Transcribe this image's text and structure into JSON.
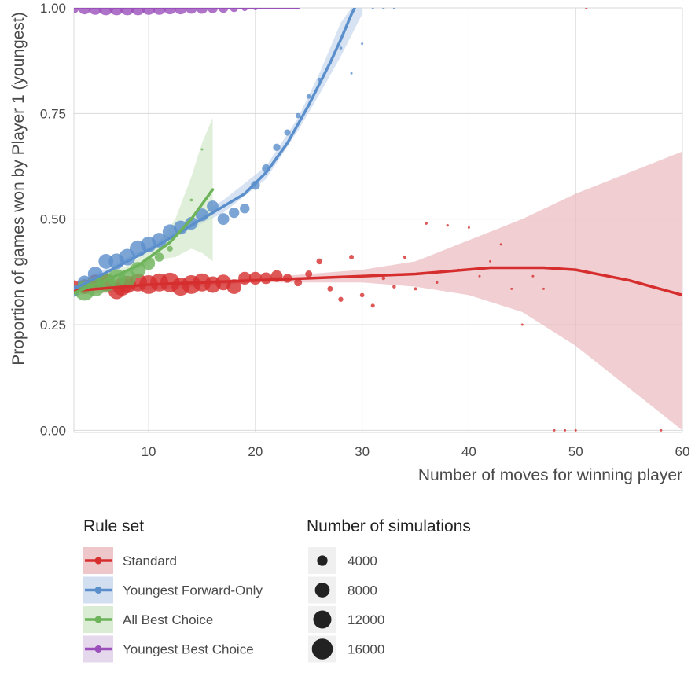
{
  "chart_data": {
    "type": "scatter",
    "title": "",
    "xlabel": "Number of moves for winning player",
    "ylabel": "Proportion of games won by Player 1 (youngest)",
    "xlim": [
      3,
      60
    ],
    "ylim": [
      -0.005,
      1.0
    ],
    "x_ticks": [
      10,
      20,
      30,
      40,
      50,
      60
    ],
    "y_ticks": [
      0.0,
      0.25,
      0.5,
      0.75,
      1.0
    ],
    "x_tick_labels": [
      "10",
      "20",
      "30",
      "40",
      "50",
      "60"
    ],
    "y_tick_labels": [
      "0.00",
      "0.25",
      "0.50",
      "0.75",
      "1.00"
    ],
    "grid": true,
    "legend_color_title": "Rule set",
    "legend_size_title": "Number of simulations",
    "size_legend": [
      {
        "label": "4000",
        "value": 4000
      },
      {
        "label": "8000",
        "value": 8000
      },
      {
        "label": "12000",
        "value": 12000
      },
      {
        "label": "16000",
        "value": 16000
      }
    ],
    "series": [
      {
        "name": "Standard",
        "color": "#d62e2e",
        "band_color": "#e8b4b8",
        "points": [
          {
            "x": 3,
            "y": 0.34,
            "n": 6000
          },
          {
            "x": 4,
            "y": 0.34,
            "n": 8000
          },
          {
            "x": 5,
            "y": 0.35,
            "n": 9000
          },
          {
            "x": 6,
            "y": 0.35,
            "n": 11000
          },
          {
            "x": 7,
            "y": 0.33,
            "n": 10000
          },
          {
            "x": 7.5,
            "y": 0.34,
            "n": 12000
          },
          {
            "x": 8,
            "y": 0.345,
            "n": 11000
          },
          {
            "x": 9,
            "y": 0.35,
            "n": 12000
          },
          {
            "x": 10,
            "y": 0.345,
            "n": 13000
          },
          {
            "x": 11,
            "y": 0.35,
            "n": 12000
          },
          {
            "x": 12,
            "y": 0.35,
            "n": 14000
          },
          {
            "x": 13,
            "y": 0.34,
            "n": 12000
          },
          {
            "x": 14,
            "y": 0.345,
            "n": 13000
          },
          {
            "x": 15,
            "y": 0.35,
            "n": 12000
          },
          {
            "x": 16,
            "y": 0.345,
            "n": 10000
          },
          {
            "x": 17,
            "y": 0.35,
            "n": 9000
          },
          {
            "x": 18,
            "y": 0.34,
            "n": 8000
          },
          {
            "x": 19,
            "y": 0.36,
            "n": 6000
          },
          {
            "x": 20,
            "y": 0.36,
            "n": 6000
          },
          {
            "x": 21,
            "y": 0.36,
            "n": 5000
          },
          {
            "x": 22,
            "y": 0.365,
            "n": 5000
          },
          {
            "x": 23,
            "y": 0.36,
            "n": 3000
          },
          {
            "x": 24,
            "y": 0.35,
            "n": 2200
          },
          {
            "x": 25,
            "y": 0.37,
            "n": 1800
          },
          {
            "x": 26,
            "y": 0.4,
            "n": 1300
          },
          {
            "x": 27,
            "y": 0.335,
            "n": 1100
          },
          {
            "x": 28,
            "y": 0.31,
            "n": 900
          },
          {
            "x": 29,
            "y": 0.41,
            "n": 800
          },
          {
            "x": 30,
            "y": 0.32,
            "n": 700
          },
          {
            "x": 31,
            "y": 0.295,
            "n": 600
          },
          {
            "x": 32,
            "y": 0.36,
            "n": 500
          },
          {
            "x": 33,
            "y": 0.34,
            "n": 450
          },
          {
            "x": 34,
            "y": 0.41,
            "n": 400
          },
          {
            "x": 35,
            "y": 0.335,
            "n": 350
          },
          {
            "x": 36,
            "y": 0.49,
            "n": 300
          },
          {
            "x": 37,
            "y": 0.35,
            "n": 280
          },
          {
            "x": 38,
            "y": 0.485,
            "n": 250
          },
          {
            "x": 39,
            "y": 0.38,
            "n": 220
          },
          {
            "x": 40,
            "y": 0.48,
            "n": 200
          },
          {
            "x": 41,
            "y": 0.365,
            "n": 180
          },
          {
            "x": 42,
            "y": 0.4,
            "n": 160
          },
          {
            "x": 43,
            "y": 0.44,
            "n": 150
          },
          {
            "x": 44,
            "y": 0.335,
            "n": 140
          },
          {
            "x": 45,
            "y": 0.25,
            "n": 120
          },
          {
            "x": 46,
            "y": 0.365,
            "n": 110
          },
          {
            "x": 47,
            "y": 0.335,
            "n": 100
          },
          {
            "x": 48,
            "y": 0.0,
            "n": 100
          },
          {
            "x": 49,
            "y": 0.0,
            "n": 100
          },
          {
            "x": 50,
            "y": 0.0,
            "n": 100
          },
          {
            "x": 51,
            "y": 1.0,
            "n": 100
          },
          {
            "x": 58,
            "y": 0.0,
            "n": 100
          }
        ],
        "fit": [
          [
            3,
            0.33
          ],
          [
            10,
            0.345
          ],
          [
            20,
            0.355
          ],
          [
            30,
            0.365
          ],
          [
            35,
            0.37
          ],
          [
            42,
            0.385
          ],
          [
            47,
            0.385
          ],
          [
            50,
            0.38
          ],
          [
            55,
            0.355
          ],
          [
            60,
            0.32
          ]
        ],
        "band": [
          [
            3,
            0.32,
            0.34
          ],
          [
            20,
            0.35,
            0.36
          ],
          [
            30,
            0.35,
            0.38
          ],
          [
            35,
            0.34,
            0.4
          ],
          [
            40,
            0.32,
            0.45
          ],
          [
            45,
            0.28,
            0.5
          ],
          [
            50,
            0.2,
            0.56
          ],
          [
            55,
            0.1,
            0.61
          ],
          [
            60,
            0.0,
            0.66
          ]
        ]
      },
      {
        "name": "Youngest Forward-Only",
        "color": "#5b8fcc",
        "band_color": "#c2d4ec",
        "points": [
          {
            "x": 3,
            "y": 0.33,
            "n": 5000
          },
          {
            "x": 4,
            "y": 0.35,
            "n": 7000
          },
          {
            "x": 5,
            "y": 0.37,
            "n": 8000
          },
          {
            "x": 6,
            "y": 0.4,
            "n": 8000
          },
          {
            "x": 7,
            "y": 0.4,
            "n": 9000
          },
          {
            "x": 8,
            "y": 0.41,
            "n": 10000
          },
          {
            "x": 9,
            "y": 0.43,
            "n": 10000
          },
          {
            "x": 10,
            "y": 0.44,
            "n": 9000
          },
          {
            "x": 11,
            "y": 0.45,
            "n": 8000
          },
          {
            "x": 12,
            "y": 0.47,
            "n": 8000
          },
          {
            "x": 13,
            "y": 0.48,
            "n": 7000
          },
          {
            "x": 14,
            "y": 0.49,
            "n": 6000
          },
          {
            "x": 15,
            "y": 0.51,
            "n": 6000
          },
          {
            "x": 16,
            "y": 0.53,
            "n": 5000
          },
          {
            "x": 17,
            "y": 0.5,
            "n": 5000
          },
          {
            "x": 18,
            "y": 0.515,
            "n": 4000
          },
          {
            "x": 19,
            "y": 0.525,
            "n": 3500
          },
          {
            "x": 20,
            "y": 0.58,
            "n": 3000
          },
          {
            "x": 21,
            "y": 0.62,
            "n": 2500
          },
          {
            "x": 22,
            "y": 0.67,
            "n": 2000
          },
          {
            "x": 23,
            "y": 0.705,
            "n": 1500
          },
          {
            "x": 24,
            "y": 0.745,
            "n": 1000
          },
          {
            "x": 25,
            "y": 0.79,
            "n": 800
          },
          {
            "x": 26,
            "y": 0.83,
            "n": 600
          },
          {
            "x": 27,
            "y": 0.87,
            "n": 400
          },
          {
            "x": 28,
            "y": 0.905,
            "n": 300
          },
          {
            "x": 29,
            "y": 0.845,
            "n": 200
          },
          {
            "x": 30,
            "y": 0.915,
            "n": 150
          },
          {
            "x": 31,
            "y": 1.0,
            "n": 100
          },
          {
            "x": 32,
            "y": 1.0,
            "n": 100
          },
          {
            "x": 33,
            "y": 1.0,
            "n": 100
          }
        ],
        "fit": [
          [
            3,
            0.335
          ],
          [
            5,
            0.36
          ],
          [
            8,
            0.4
          ],
          [
            11,
            0.44
          ],
          [
            14,
            0.485
          ],
          [
            17,
            0.53
          ],
          [
            19,
            0.56
          ],
          [
            21,
            0.61
          ],
          [
            23,
            0.68
          ],
          [
            25,
            0.77
          ],
          [
            26,
            0.82
          ],
          [
            27,
            0.87
          ],
          [
            28,
            0.925
          ],
          [
            29,
            0.985
          ],
          [
            29.3,
            1.0
          ]
        ],
        "band": [
          [
            3,
            0.325,
            0.345
          ],
          [
            10,
            0.425,
            0.435
          ],
          [
            17,
            0.515,
            0.545
          ],
          [
            21,
            0.595,
            0.625
          ],
          [
            24,
            0.71,
            0.74
          ],
          [
            26,
            0.795,
            0.845
          ],
          [
            28,
            0.885,
            0.965
          ],
          [
            29,
            0.935,
            1.0
          ],
          [
            30,
            0.985,
            1.0
          ]
        ]
      },
      {
        "name": "All Best Choice",
        "color": "#6db35a",
        "band_color": "#cfe6c6",
        "points": [
          {
            "x": 4,
            "y": 0.33,
            "n": 14000
          },
          {
            "x": 5,
            "y": 0.34,
            "n": 14000
          },
          {
            "x": 6,
            "y": 0.35,
            "n": 13000
          },
          {
            "x": 7,
            "y": 0.36,
            "n": 12000
          },
          {
            "x": 8,
            "y": 0.36,
            "n": 11000
          },
          {
            "x": 9,
            "y": 0.38,
            "n": 9000
          },
          {
            "x": 10,
            "y": 0.395,
            "n": 6000
          },
          {
            "x": 11,
            "y": 0.41,
            "n": 3000
          },
          {
            "x": 12,
            "y": 0.43,
            "n": 1200
          },
          {
            "x": 14,
            "y": 0.545,
            "n": 300
          },
          {
            "x": 15,
            "y": 0.665,
            "n": 100
          }
        ],
        "fit": [
          [
            3,
            0.325
          ],
          [
            6,
            0.355
          ],
          [
            9,
            0.39
          ],
          [
            12,
            0.445
          ],
          [
            14,
            0.5
          ],
          [
            16,
            0.57
          ]
        ],
        "band": [
          [
            3,
            0.315,
            0.335
          ],
          [
            8,
            0.37,
            0.39
          ],
          [
            11,
            0.405,
            0.445
          ],
          [
            12.5,
            0.41,
            0.5
          ],
          [
            14,
            0.43,
            0.6
          ],
          [
            15,
            0.42,
            0.68
          ],
          [
            16,
            0.4,
            0.74
          ]
        ]
      },
      {
        "name": "Youngest Best Choice",
        "color": "#9a4fba",
        "band_color": "#dccbe6",
        "points": [
          {
            "x": 3,
            "y": 1.0,
            "n": 4000
          },
          {
            "x": 4,
            "y": 1.0,
            "n": 6000
          },
          {
            "x": 5,
            "y": 1.0,
            "n": 7000
          },
          {
            "x": 6,
            "y": 1.0,
            "n": 8000
          },
          {
            "x": 7,
            "y": 1.0,
            "n": 8000
          },
          {
            "x": 8,
            "y": 1.0,
            "n": 8000
          },
          {
            "x": 9,
            "y": 1.0,
            "n": 8000
          },
          {
            "x": 10,
            "y": 1.0,
            "n": 7000
          },
          {
            "x": 11,
            "y": 1.0,
            "n": 7000
          },
          {
            "x": 12,
            "y": 1.0,
            "n": 6000
          },
          {
            "x": 13,
            "y": 1.0,
            "n": 6000
          },
          {
            "x": 14,
            "y": 1.0,
            "n": 5000
          },
          {
            "x": 15,
            "y": 1.0,
            "n": 5000
          },
          {
            "x": 16,
            "y": 1.0,
            "n": 4000
          },
          {
            "x": 17,
            "y": 1.0,
            "n": 3500
          },
          {
            "x": 18,
            "y": 1.0,
            "n": 2500
          },
          {
            "x": 19,
            "y": 1.0,
            "n": 1500
          },
          {
            "x": 20,
            "y": 1.0,
            "n": 800
          },
          {
            "x": 21,
            "y": 1.0,
            "n": 400
          },
          {
            "x": 22,
            "y": 1.0,
            "n": 200
          },
          {
            "x": 23,
            "y": 1.0,
            "n": 100
          },
          {
            "x": 24,
            "y": 1.0,
            "n": 100
          }
        ],
        "fit": [
          [
            3,
            1.0
          ],
          [
            24,
            1.0
          ]
        ],
        "band": []
      }
    ]
  }
}
